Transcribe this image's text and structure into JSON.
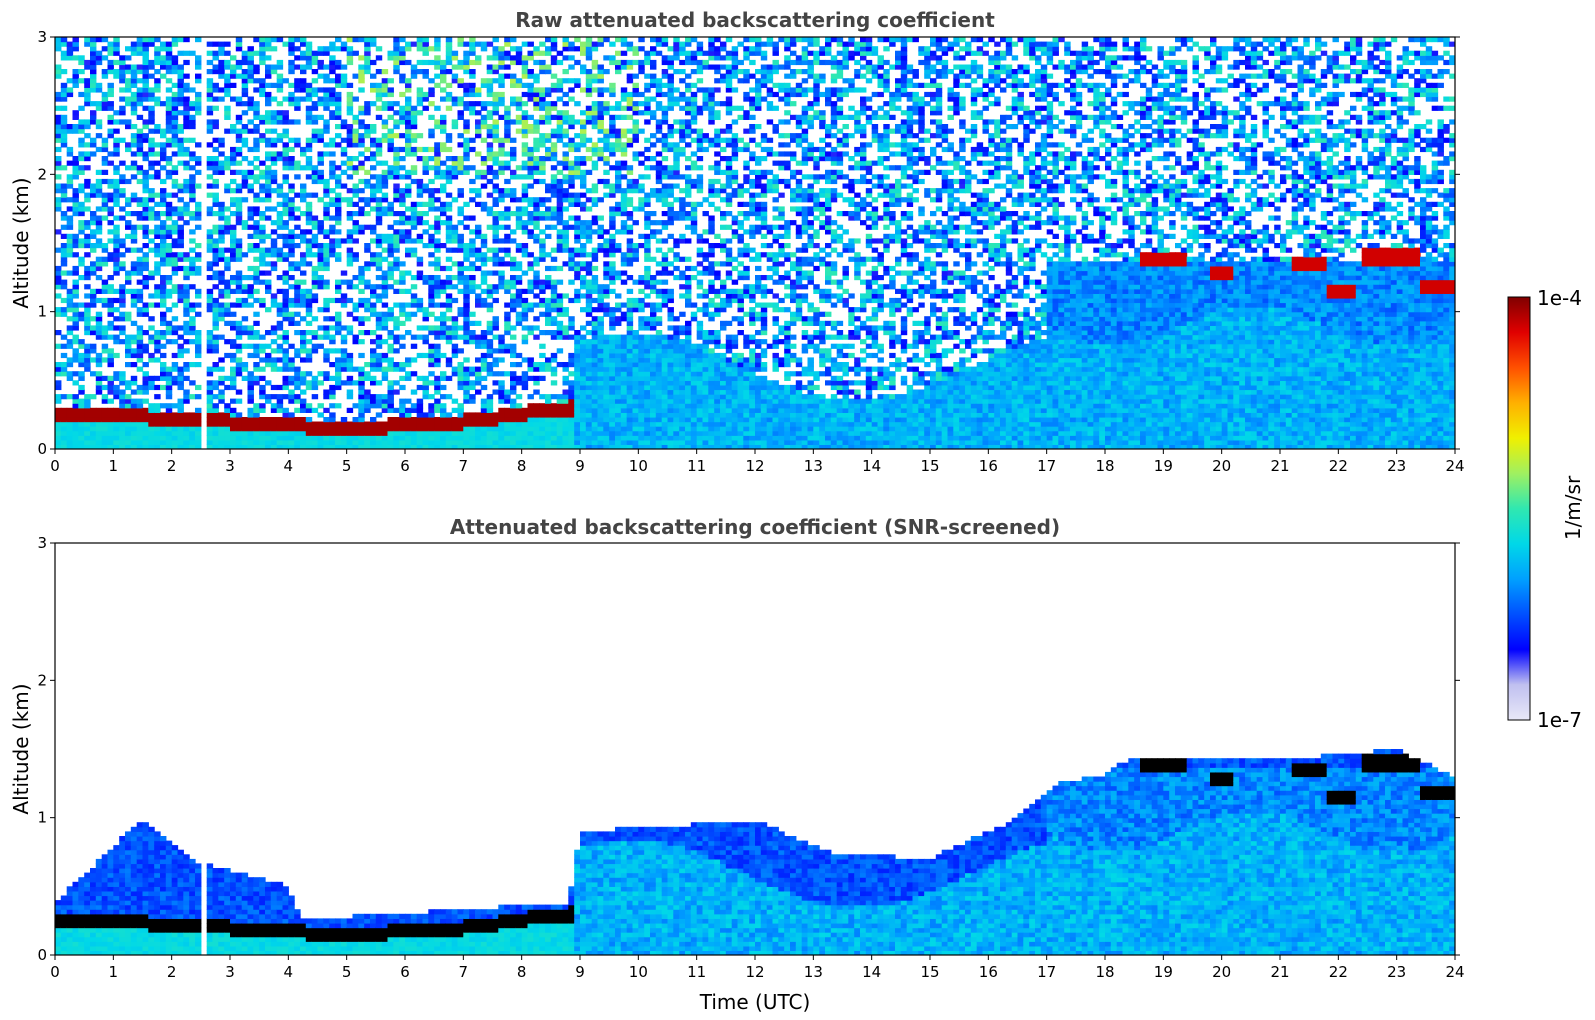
{
  "chart_data": [
    {
      "type": "heatmap",
      "title": "Raw attenuated backscattering coefficient",
      "xlabel": "",
      "ylabel": "Altitude (km)",
      "xlim": [
        0,
        24
      ],
      "ylim": [
        0,
        3
      ],
      "xticks": [
        0,
        1,
        2,
        3,
        4,
        5,
        6,
        7,
        8,
        9,
        10,
        11,
        12,
        13,
        14,
        15,
        16,
        17,
        18,
        19,
        20,
        21,
        22,
        23,
        24
      ],
      "yticks": [
        0,
        1,
        2,
        3
      ],
      "data_gap": {
        "x_start": 2.47,
        "x_end": 2.57
      },
      "boundary_layer_top_km": [
        {
          "x": 0,
          "y": 0.24
        },
        {
          "x": 1,
          "y": 0.25
        },
        {
          "x": 2,
          "y": 0.22
        },
        {
          "x": 3,
          "y": 0.2
        },
        {
          "x": 4,
          "y": 0.17
        },
        {
          "x": 5,
          "y": 0.16
        },
        {
          "x": 6,
          "y": 0.17
        },
        {
          "x": 7,
          "y": 0.2
        },
        {
          "x": 8,
          "y": 0.26
        },
        {
          "x": 8.8,
          "y": 0.3
        }
      ],
      "elevated_cloud_layers": [
        {
          "x_start": 18.6,
          "x_end": 19.4,
          "y": 1.38
        },
        {
          "x_start": 19.8,
          "x_end": 20.2,
          "y": 1.28
        },
        {
          "x_start": 21.2,
          "x_end": 21.8,
          "y": 1.35
        },
        {
          "x_start": 21.8,
          "x_end": 22.3,
          "y": 1.15
        },
        {
          "x_start": 22.4,
          "x_end": 23.4,
          "y": 1.4
        },
        {
          "x_start": 23.4,
          "x_end": 24,
          "y": 1.18
        }
      ]
    },
    {
      "type": "heatmap",
      "title": "Attenuated backscattering coefficient (SNR-screened)",
      "xlabel": "Time (UTC)",
      "ylabel": "Altitude (km)",
      "xlim": [
        0,
        24
      ],
      "ylim": [
        0,
        3
      ],
      "xticks": [
        0,
        1,
        2,
        3,
        4,
        5,
        6,
        7,
        8,
        9,
        10,
        11,
        12,
        13,
        14,
        15,
        16,
        17,
        18,
        19,
        20,
        21,
        22,
        23,
        24
      ],
      "yticks": [
        0,
        1,
        2,
        3
      ],
      "screened_signal_top_km": [
        {
          "x": 0,
          "y": 0.38
        },
        {
          "x": 1.5,
          "y": 1.0
        },
        {
          "x": 2.3,
          "y": 0.7
        },
        {
          "x": 4,
          "y": 0.5
        },
        {
          "x": 4.2,
          "y": 0.26
        },
        {
          "x": 8.8,
          "y": 0.38
        },
        {
          "x": 9,
          "y": 0.9
        },
        {
          "x": 12,
          "y": 0.98
        },
        {
          "x": 13.3,
          "y": 0.75
        },
        {
          "x": 15,
          "y": 0.7
        },
        {
          "x": 16.5,
          "y": 1.0
        },
        {
          "x": 17.2,
          "y": 1.25
        },
        {
          "x": 18,
          "y": 1.32
        },
        {
          "x": 18.5,
          "y": 1.45
        },
        {
          "x": 21,
          "y": 1.42
        },
        {
          "x": 23,
          "y": 1.5
        },
        {
          "x": 24,
          "y": 1.3
        }
      ]
    }
  ],
  "colorbar": {
    "label": "1/m/sr",
    "max_label": "1e-4",
    "min_label": "1e-7",
    "scale": "log",
    "colormap": [
      "#e8e8f8",
      "#c0c0f0",
      "#0000ff",
      "#0050ff",
      "#00a0ff",
      "#00d8e8",
      "#30e8b0",
      "#a0f060",
      "#f0f000",
      "#ffb000",
      "#ff5000",
      "#e00000",
      "#800000"
    ]
  }
}
